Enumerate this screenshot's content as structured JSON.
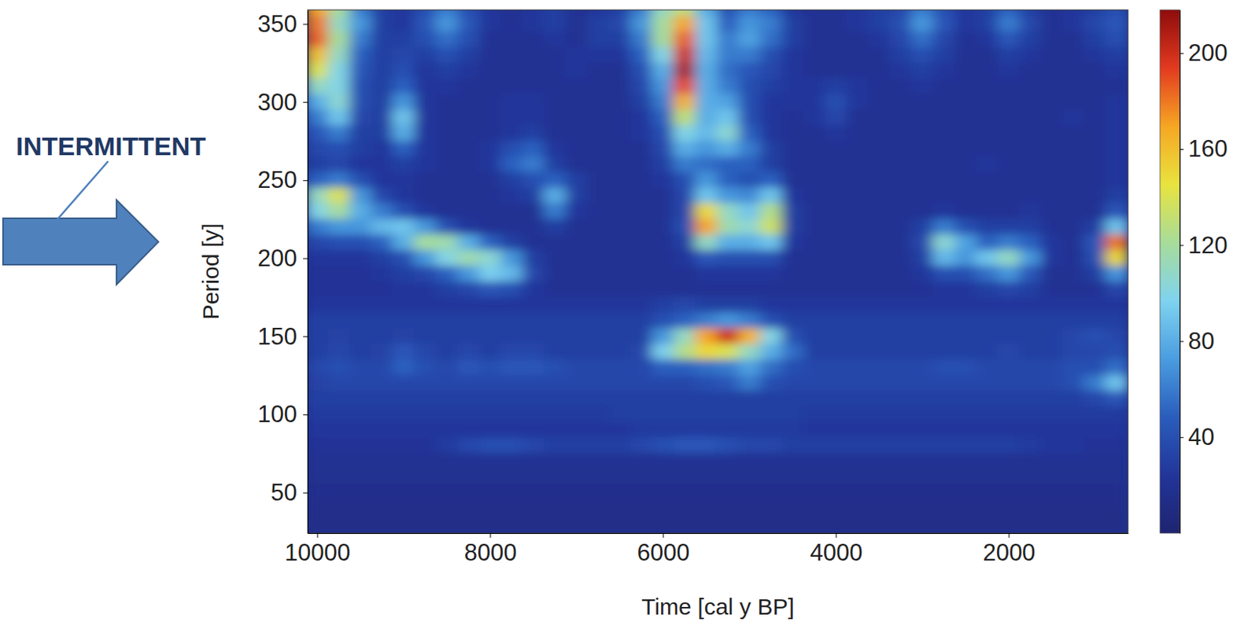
{
  "chart_data": {
    "type": "heatmap",
    "x_label": "Time [cal y BP]",
    "y_label": "Period [y]",
    "annotation": "INTERMITTENT",
    "xlim": [
      10110,
      620
    ],
    "xticks": [
      10000,
      8000,
      6000,
      4000,
      2000
    ],
    "ylim": [
      24,
      359
    ],
    "yticks": [
      50,
      100,
      150,
      200,
      250,
      300,
      350
    ],
    "colorbar": {
      "range": [
        0,
        218
      ],
      "ticks": [
        40,
        80,
        120,
        160,
        200
      ]
    },
    "x": [
      10000,
      9750,
      9500,
      9250,
      9000,
      8750,
      8500,
      8250,
      8000,
      7750,
      7500,
      7250,
      7000,
      6750,
      6500,
      6250,
      6000,
      5750,
      5500,
      5250,
      5000,
      4750,
      4500,
      4250,
      4000,
      3750,
      3500,
      3250,
      3000,
      2750,
      2500,
      2250,
      2000,
      1750,
      1500,
      1250,
      1000,
      750
    ],
    "y": [
      360,
      350,
      340,
      330,
      320,
      310,
      300,
      290,
      280,
      270,
      260,
      250,
      240,
      230,
      220,
      210,
      200,
      190,
      180,
      170,
      160,
      150,
      140,
      130,
      120,
      110,
      100,
      90,
      80,
      70,
      60,
      50,
      40,
      30
    ],
    "values": [
      [
        170,
        120,
        60,
        30,
        25,
        40,
        60,
        40,
        25,
        20,
        25,
        30,
        20,
        25,
        30,
        60,
        110,
        130,
        80,
        40,
        60,
        50,
        25,
        20,
        20,
        25,
        30,
        35,
        60,
        40,
        25,
        30,
        50,
        30,
        20,
        25,
        30,
        40
      ],
      [
        180,
        110,
        70,
        30,
        25,
        45,
        70,
        45,
        25,
        20,
        25,
        30,
        20,
        30,
        35,
        70,
        120,
        170,
        90,
        50,
        70,
        60,
        30,
        20,
        20,
        25,
        30,
        40,
        70,
        45,
        25,
        30,
        60,
        35,
        20,
        25,
        35,
        45
      ],
      [
        185,
        120,
        60,
        30,
        30,
        40,
        55,
        40,
        20,
        20,
        20,
        25,
        20,
        30,
        30,
        60,
        120,
        185,
        90,
        60,
        75,
        55,
        30,
        20,
        20,
        20,
        25,
        35,
        55,
        35,
        20,
        25,
        45,
        30,
        20,
        20,
        30,
        40
      ],
      [
        160,
        110,
        50,
        30,
        35,
        30,
        40,
        30,
        20,
        20,
        20,
        20,
        25,
        25,
        25,
        50,
        100,
        200,
        85,
        60,
        60,
        40,
        25,
        20,
        20,
        20,
        20,
        30,
        40,
        30,
        20,
        20,
        30,
        25,
        20,
        20,
        25,
        30
      ],
      [
        140,
        100,
        45,
        30,
        40,
        25,
        30,
        25,
        20,
        20,
        20,
        20,
        25,
        20,
        20,
        40,
        80,
        210,
        80,
        55,
        45,
        35,
        25,
        20,
        20,
        20,
        20,
        25,
        30,
        25,
        20,
        20,
        25,
        20,
        20,
        20,
        20,
        25
      ],
      [
        110,
        100,
        40,
        30,
        50,
        25,
        25,
        20,
        20,
        20,
        20,
        20,
        20,
        20,
        20,
        35,
        70,
        190,
        80,
        60,
        40,
        30,
        25,
        25,
        30,
        25,
        20,
        20,
        25,
        20,
        20,
        20,
        20,
        20,
        20,
        20,
        20,
        20
      ],
      [
        80,
        105,
        40,
        30,
        70,
        25,
        20,
        20,
        20,
        25,
        25,
        20,
        20,
        20,
        20,
        30,
        60,
        165,
        80,
        75,
        40,
        25,
        25,
        25,
        40,
        25,
        20,
        20,
        20,
        20,
        20,
        20,
        20,
        20,
        20,
        20,
        20,
        25
      ],
      [
        60,
        90,
        35,
        30,
        90,
        25,
        20,
        20,
        20,
        25,
        25,
        20,
        20,
        20,
        20,
        25,
        50,
        130,
        80,
        90,
        40,
        25,
        20,
        25,
        35,
        20,
        20,
        20,
        20,
        20,
        20,
        20,
        20,
        20,
        20,
        25,
        20,
        25
      ],
      [
        45,
        60,
        30,
        30,
        80,
        25,
        20,
        20,
        20,
        25,
        30,
        20,
        20,
        20,
        20,
        25,
        40,
        100,
        85,
        105,
        50,
        25,
        20,
        20,
        25,
        20,
        20,
        20,
        20,
        20,
        20,
        20,
        20,
        20,
        20,
        20,
        20,
        25
      ],
      [
        35,
        40,
        30,
        25,
        50,
        25,
        20,
        20,
        25,
        40,
        50,
        25,
        20,
        20,
        20,
        20,
        35,
        80,
        70,
        80,
        60,
        30,
        20,
        20,
        20,
        20,
        20,
        20,
        20,
        20,
        20,
        20,
        20,
        20,
        20,
        20,
        20,
        25
      ],
      [
        30,
        35,
        25,
        25,
        30,
        25,
        20,
        20,
        25,
        50,
        60,
        30,
        20,
        20,
        20,
        20,
        30,
        60,
        55,
        50,
        50,
        30,
        20,
        20,
        20,
        20,
        20,
        20,
        20,
        20,
        20,
        25,
        20,
        20,
        20,
        20,
        20,
        25
      ],
      [
        50,
        60,
        40,
        25,
        25,
        20,
        20,
        20,
        20,
        30,
        40,
        50,
        30,
        20,
        20,
        20,
        25,
        40,
        70,
        50,
        40,
        50,
        20,
        20,
        20,
        20,
        20,
        20,
        20,
        20,
        20,
        20,
        20,
        20,
        20,
        20,
        20,
        25
      ],
      [
        110,
        140,
        70,
        35,
        25,
        20,
        20,
        20,
        20,
        25,
        30,
        80,
        30,
        20,
        20,
        20,
        20,
        35,
        90,
        70,
        65,
        90,
        25,
        20,
        20,
        20,
        20,
        20,
        20,
        20,
        20,
        20,
        20,
        20,
        20,
        20,
        20,
        30
      ],
      [
        100,
        120,
        80,
        60,
        40,
        25,
        20,
        20,
        20,
        20,
        20,
        60,
        25,
        20,
        20,
        20,
        20,
        35,
        150,
        110,
        90,
        125,
        30,
        20,
        20,
        20,
        20,
        20,
        20,
        25,
        20,
        20,
        20,
        25,
        20,
        20,
        20,
        45
      ],
      [
        60,
        70,
        70,
        85,
        90,
        70,
        40,
        25,
        20,
        20,
        20,
        30,
        20,
        20,
        20,
        20,
        20,
        40,
        170,
        115,
        105,
        135,
        30,
        20,
        20,
        20,
        20,
        20,
        30,
        60,
        40,
        30,
        30,
        30,
        20,
        20,
        30,
        90
      ],
      [
        35,
        40,
        40,
        50,
        80,
        120,
        115,
        80,
        50,
        30,
        20,
        20,
        20,
        20,
        20,
        20,
        20,
        30,
        110,
        80,
        80,
        90,
        25,
        20,
        20,
        20,
        20,
        20,
        35,
        105,
        75,
        50,
        60,
        50,
        25,
        20,
        45,
        180
      ],
      [
        25,
        25,
        25,
        30,
        40,
        70,
        100,
        115,
        105,
        70,
        30,
        20,
        20,
        20,
        20,
        20,
        20,
        25,
        45,
        40,
        40,
        40,
        20,
        20,
        20,
        20,
        20,
        20,
        30,
        85,
        70,
        90,
        110,
        70,
        25,
        20,
        40,
        150
      ],
      [
        22,
        22,
        22,
        25,
        30,
        35,
        50,
        70,
        95,
        85,
        35,
        20,
        20,
        20,
        20,
        20,
        20,
        20,
        25,
        25,
        25,
        25,
        20,
        20,
        20,
        20,
        20,
        20,
        25,
        40,
        40,
        55,
        70,
        45,
        20,
        20,
        30,
        70
      ],
      [
        22,
        22,
        22,
        22,
        25,
        25,
        30,
        35,
        45,
        40,
        25,
        20,
        20,
        20,
        20,
        20,
        20,
        20,
        20,
        20,
        20,
        20,
        20,
        20,
        20,
        20,
        20,
        20,
        20,
        25,
        25,
        30,
        35,
        30,
        20,
        20,
        20,
        35
      ],
      [
        25,
        25,
        25,
        25,
        25,
        25,
        25,
        25,
        25,
        25,
        25,
        25,
        25,
        25,
        25,
        25,
        30,
        35,
        30,
        30,
        30,
        25,
        25,
        25,
        25,
        25,
        25,
        25,
        25,
        25,
        25,
        25,
        25,
        25,
        25,
        25,
        25,
        25
      ],
      [
        30,
        30,
        30,
        30,
        30,
        30,
        30,
        30,
        30,
        30,
        30,
        30,
        30,
        30,
        30,
        30,
        40,
        50,
        60,
        70,
        60,
        40,
        30,
        30,
        30,
        30,
        30,
        30,
        30,
        30,
        30,
        30,
        30,
        30,
        30,
        30,
        30,
        30
      ],
      [
        30,
        32,
        30,
        30,
        32,
        30,
        30,
        30,
        30,
        30,
        30,
        30,
        30,
        30,
        30,
        30,
        70,
        110,
        170,
        200,
        165,
        100,
        40,
        30,
        30,
        30,
        30,
        30,
        30,
        30,
        30,
        30,
        30,
        30,
        30,
        35,
        40,
        35
      ],
      [
        30,
        35,
        30,
        32,
        45,
        35,
        30,
        35,
        30,
        35,
        35,
        30,
        30,
        30,
        30,
        35,
        95,
        125,
        150,
        140,
        110,
        80,
        55,
        30,
        30,
        30,
        30,
        30,
        30,
        30,
        30,
        30,
        35,
        30,
        30,
        35,
        35,
        40
      ],
      [
        35,
        40,
        35,
        35,
        50,
        40,
        35,
        45,
        40,
        45,
        45,
        40,
        35,
        35,
        35,
        35,
        50,
        50,
        55,
        60,
        75,
        55,
        40,
        35,
        35,
        35,
        35,
        35,
        35,
        40,
        40,
        35,
        35,
        35,
        35,
        40,
        40,
        55
      ],
      [
        32,
        35,
        35,
        35,
        35,
        35,
        35,
        35,
        35,
        35,
        35,
        35,
        35,
        35,
        35,
        35,
        35,
        35,
        40,
        45,
        60,
        40,
        35,
        35,
        35,
        35,
        35,
        35,
        35,
        35,
        35,
        35,
        35,
        35,
        35,
        40,
        60,
        90
      ],
      [
        30,
        30,
        30,
        30,
        30,
        30,
        30,
        30,
        30,
        30,
        30,
        30,
        30,
        30,
        30,
        30,
        30,
        30,
        30,
        30,
        30,
        30,
        30,
        30,
        30,
        30,
        30,
        30,
        30,
        30,
        30,
        30,
        30,
        30,
        30,
        30,
        35,
        45
      ],
      [
        28,
        28,
        28,
        28,
        28,
        28,
        28,
        28,
        28,
        28,
        28,
        28,
        28,
        28,
        30,
        30,
        30,
        30,
        30,
        30,
        30,
        30,
        30,
        28,
        28,
        28,
        28,
        28,
        28,
        28,
        28,
        28,
        28,
        28,
        28,
        28,
        28,
        28
      ],
      [
        25,
        25,
        25,
        25,
        25,
        25,
        25,
        25,
        25,
        25,
        25,
        25,
        25,
        25,
        25,
        28,
        28,
        28,
        28,
        28,
        28,
        28,
        28,
        25,
        25,
        25,
        25,
        25,
        25,
        25,
        25,
        25,
        25,
        25,
        25,
        25,
        25,
        25
      ],
      [
        22,
        22,
        22,
        22,
        22,
        22,
        28,
        35,
        40,
        40,
        35,
        30,
        30,
        30,
        30,
        35,
        40,
        45,
        45,
        40,
        35,
        35,
        30,
        30,
        30,
        30,
        30,
        30,
        30,
        30,
        30,
        30,
        30,
        28,
        25,
        25,
        22,
        22
      ],
      [
        20,
        20,
        20,
        20,
        20,
        20,
        20,
        20,
        20,
        20,
        20,
        20,
        20,
        20,
        20,
        20,
        20,
        20,
        20,
        20,
        20,
        20,
        20,
        20,
        20,
        20,
        20,
        20,
        20,
        20,
        20,
        20,
        20,
        20,
        20,
        20,
        20,
        20
      ],
      [
        18,
        18,
        18,
        18,
        18,
        18,
        18,
        18,
        18,
        18,
        18,
        18,
        18,
        18,
        18,
        18,
        18,
        18,
        18,
        18,
        18,
        18,
        18,
        18,
        18,
        18,
        18,
        18,
        18,
        18,
        18,
        18,
        18,
        18,
        18,
        18,
        18,
        18
      ],
      [
        16,
        16,
        16,
        16,
        16,
        16,
        16,
        16,
        16,
        16,
        16,
        16,
        16,
        16,
        16,
        16,
        16,
        16,
        16,
        16,
        16,
        16,
        16,
        16,
        16,
        16,
        16,
        16,
        16,
        16,
        16,
        16,
        16,
        16,
        16,
        16,
        16,
        16
      ],
      [
        15,
        15,
        15,
        15,
        15,
        15,
        15,
        15,
        15,
        15,
        15,
        15,
        15,
        15,
        15,
        15,
        15,
        15,
        15,
        15,
        15,
        15,
        15,
        15,
        15,
        15,
        15,
        15,
        15,
        15,
        15,
        15,
        15,
        15,
        15,
        15,
        15,
        15
      ],
      [
        14,
        14,
        14,
        14,
        14,
        14,
        14,
        14,
        14,
        14,
        14,
        14,
        14,
        14,
        14,
        14,
        14,
        14,
        14,
        14,
        14,
        14,
        14,
        14,
        14,
        14,
        14,
        14,
        14,
        14,
        14,
        14,
        14,
        14,
        14,
        14,
        14,
        14
      ]
    ]
  }
}
